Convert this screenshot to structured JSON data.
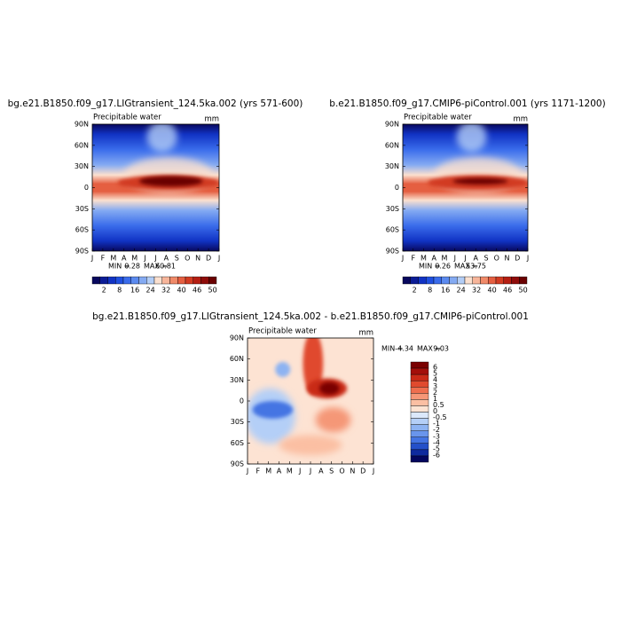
{
  "chart_data": [
    {
      "type": "contour",
      "title": "bg.e21.B1850.f09_g17.LIGtransient_124.5ka.002 (yrs 571-600)",
      "subtitle": "Precipitable water",
      "units": "mm",
      "categories": [
        "J",
        "F",
        "M",
        "A",
        "M",
        "J",
        "J",
        "A",
        "S",
        "O",
        "N",
        "D",
        "J"
      ],
      "ylim": [
        -90,
        90
      ],
      "yticks": [
        {
          "value": 90,
          "label": "90N"
        },
        {
          "value": 60,
          "label": "60N"
        },
        {
          "value": 30,
          "label": "30N"
        },
        {
          "value": 0,
          "label": "0"
        },
        {
          "value": -30,
          "label": "30S"
        },
        {
          "value": -60,
          "label": "60S"
        },
        {
          "value": -90,
          "label": "90S"
        }
      ],
      "stats": [
        {
          "label": "MIN =",
          "value": 0.28
        },
        {
          "label": "MAX =",
          "value": 60.81
        }
      ],
      "colorbar_colors": [
        "#08085e",
        "#0b1c96",
        "#1133c4",
        "#1f4fe0",
        "#3a6ceb",
        "#5b8aef",
        "#84aaf2",
        "#b3cdf6",
        "#fbe0cf",
        "#f7b59a",
        "#f08a69",
        "#e55f41",
        "#d23b22",
        "#b51e12",
        "#8f0c0a",
        "#6a0000"
      ],
      "levels": [
        2,
        8,
        16,
        24,
        32,
        40,
        46,
        50
      ]
    },
    {
      "type": "contour",
      "title": "b.e21.B1850.f09_g17.CMIP6-piControl.001 (yrs 1171-1200)",
      "subtitle": "Precipitable water",
      "units": "mm",
      "categories": [
        "J",
        "F",
        "M",
        "A",
        "M",
        "J",
        "J",
        "A",
        "S",
        "O",
        "N",
        "D",
        "J"
      ],
      "ylim": [
        -90,
        90
      ],
      "yticks": [
        {
          "value": 90,
          "label": "90N"
        },
        {
          "value": 60,
          "label": "60N"
        },
        {
          "value": 30,
          "label": "30N"
        },
        {
          "value": 0,
          "label": "0"
        },
        {
          "value": -30,
          "label": "30S"
        },
        {
          "value": -60,
          "label": "60S"
        },
        {
          "value": -90,
          "label": "90S"
        }
      ],
      "stats": [
        {
          "label": "MIN =",
          "value": 0.26
        },
        {
          "label": "MAX =",
          "value": 53.75
        }
      ],
      "colorbar_colors": [
        "#08085e",
        "#0b1c96",
        "#1133c4",
        "#1f4fe0",
        "#3a6ceb",
        "#5b8aef",
        "#84aaf2",
        "#b3cdf6",
        "#fbe0cf",
        "#f7b59a",
        "#f08a69",
        "#e55f41",
        "#d23b22",
        "#b51e12",
        "#8f0c0a",
        "#6a0000"
      ],
      "levels": [
        2,
        8,
        16,
        24,
        32,
        40,
        46,
        50
      ]
    },
    {
      "type": "contour",
      "title": "bg.e21.B1850.f09_g17.LIGtransient_124.5ka.002 - b.e21.B1850.f09_g17.CMIP6-piControl.001",
      "subtitle": "Precipitable water",
      "units": "mm",
      "categories": [
        "J",
        "F",
        "M",
        "A",
        "M",
        "J",
        "J",
        "A",
        "S",
        "O",
        "N",
        "D",
        "J"
      ],
      "ylim": [
        -90,
        90
      ],
      "yticks": [
        {
          "value": 90,
          "label": "90N"
        },
        {
          "value": 60,
          "label": "60N"
        },
        {
          "value": 30,
          "label": "30N"
        },
        {
          "value": 0,
          "label": "0"
        },
        {
          "value": -30,
          "label": "30S"
        },
        {
          "value": -60,
          "label": "60S"
        },
        {
          "value": -90,
          "label": "90S"
        }
      ],
      "stats": [
        {
          "label": "MIN =",
          "value": -4.34
        },
        {
          "label": "MAX =",
          "value": 9.03
        }
      ],
      "colorbar_colors": [
        "#7a0000",
        "#a30f0a",
        "#c92a17",
        "#e04a2e",
        "#ee6e4e",
        "#f59777",
        "#fbbfa3",
        "#fde3d3",
        "#dbe8fb",
        "#b4cff7",
        "#8db3f2",
        "#6995ec",
        "#4474e3",
        "#2450c9",
        "#0e2a9e",
        "#03065e"
      ],
      "levels": [
        6,
        5,
        4,
        3,
        2,
        1,
        0.5,
        0,
        -0.5,
        -1,
        -2,
        -3,
        -4,
        -5,
        -6
      ]
    }
  ]
}
